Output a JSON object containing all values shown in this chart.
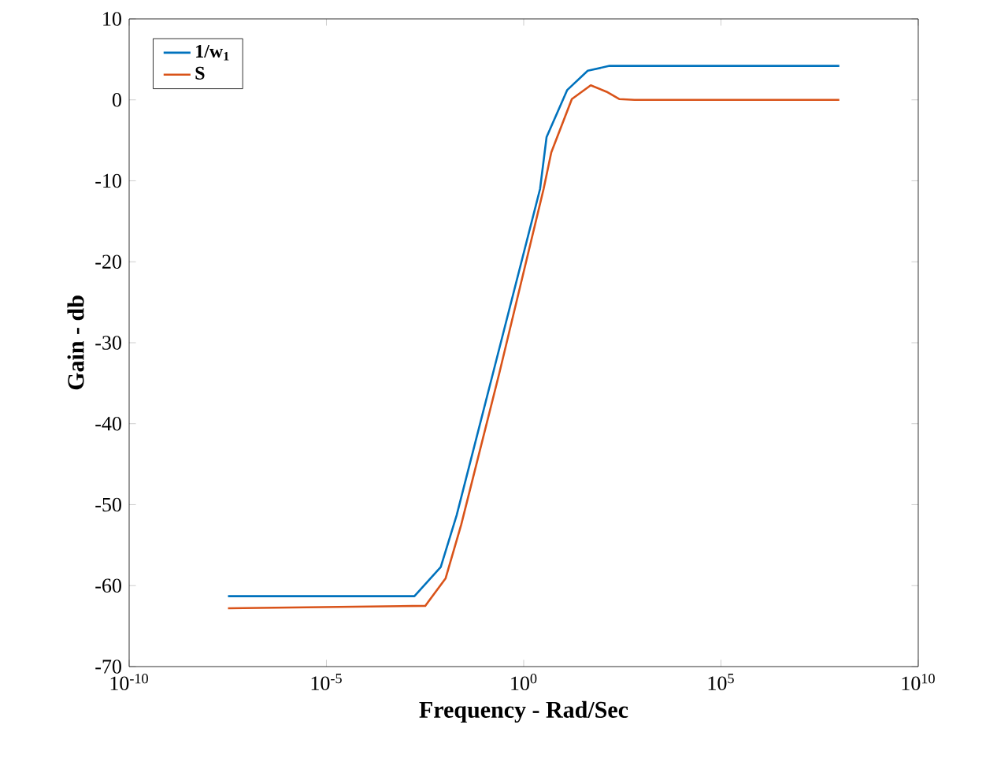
{
  "chart_data": {
    "type": "line",
    "xlabel": "Frequency - Rad/Sec",
    "ylabel": "Gain - db",
    "log": "x",
    "xlim": [
      1e-10,
      10000000000.0
    ],
    "ylim": [
      -70,
      10
    ],
    "xticks": [
      {
        "value": 1e-10,
        "label": "10$^{-10}$"
      },
      {
        "value": 1e-05,
        "label": "10$^{-5}$"
      },
      {
        "value": 1,
        "label": "10$^{0}$"
      },
      {
        "value": 100000.0,
        "label": "10$^{5}$"
      },
      {
        "value": 10000000000.0,
        "label": "10$^{10}$"
      }
    ],
    "yticks": [
      -70,
      -60,
      -50,
      -40,
      -30,
      -20,
      -10,
      0,
      10
    ],
    "legend": "top left",
    "line_style": "solid",
    "marker": "none",
    "series": [
      {
        "name": "1/w$_{1}$",
        "color": "#0072bd",
        "x": [
          3.2e-08,
          0.0017,
          0.0079,
          0.02,
          0.166,
          2.6,
          3.8,
          12.6,
          42,
          150,
          100000000.0
        ],
        "values": [
          -61.3,
          -61.3,
          -57.7,
          -51.3,
          -33.8,
          -11.0,
          -4.6,
          1.2,
          3.6,
          4.2,
          4.2
        ]
      },
      {
        "name": "S",
        "color": "#d95319",
        "x": [
          3.2e-08,
          0.0032,
          0.0105,
          0.026,
          0.24,
          3.2,
          5.0,
          16.6,
          50,
          126,
          263,
          646,
          100000000.0
        ],
        "values": [
          -62.8,
          -62.5,
          -59.1,
          -52.5,
          -33.8,
          -11.0,
          -6.5,
          0.1,
          1.8,
          1.0,
          0.1,
          0,
          0
        ]
      }
    ]
  }
}
